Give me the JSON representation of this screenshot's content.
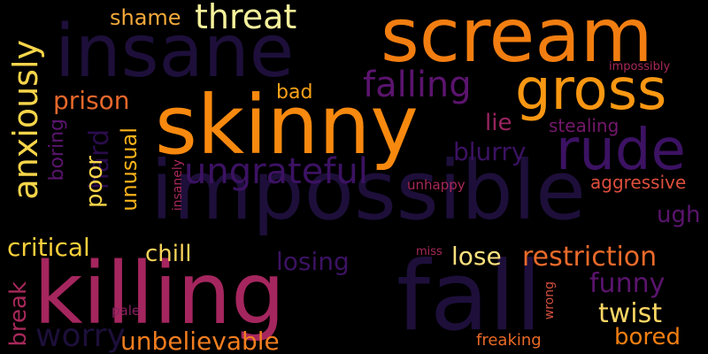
{
  "background": "#000000",
  "words": [
    {
      "text": "impossible",
      "color": "#1d0f3a",
      "orientation": "horizontal"
    },
    {
      "text": "fall",
      "color": "#1d0f3a",
      "orientation": "horizontal"
    },
    {
      "text": "insane",
      "color": "#1d0f3a",
      "orientation": "horizontal"
    },
    {
      "text": "worry",
      "color": "#1d0f3a",
      "orientation": "horizontal"
    },
    {
      "text": "scream",
      "color": "#f27e11",
      "orientation": "horizontal"
    },
    {
      "text": "skinny",
      "color": "#f8890f",
      "orientation": "horizontal"
    },
    {
      "text": "killing",
      "color": "#a5265e",
      "orientation": "horizontal"
    },
    {
      "text": "gross",
      "color": "#f99712",
      "orientation": "horizontal"
    },
    {
      "text": "rude",
      "color": "#3c1263",
      "orientation": "horizontal"
    },
    {
      "text": "threat",
      "color": "#f6f29c",
      "orientation": "horizontal"
    },
    {
      "text": "shame",
      "color": "#f4a93a",
      "orientation": "horizontal"
    },
    {
      "text": "falling",
      "color": "#5b146e",
      "orientation": "horizontal"
    },
    {
      "text": "anxiously",
      "color": "#f7d54a",
      "orientation": "vertical"
    },
    {
      "text": "prison",
      "color": "#e9682b",
      "orientation": "horizontal"
    },
    {
      "text": "bad",
      "color": "#f9a21a",
      "orientation": "horizontal"
    },
    {
      "text": "ungrateful",
      "color": "#3c1263",
      "orientation": "horizontal"
    },
    {
      "text": "hard",
      "color": "#2a0c4c",
      "orientation": "vertical"
    },
    {
      "text": "poor",
      "color": "#f7d54a",
      "orientation": "vertical"
    },
    {
      "text": "boring",
      "color": "#5b146e",
      "orientation": "vertical"
    },
    {
      "text": "unusual",
      "color": "#f9b21a",
      "orientation": "vertical"
    },
    {
      "text": "lie",
      "color": "#9a2460",
      "orientation": "horizontal"
    },
    {
      "text": "stealing",
      "color": "#74186c",
      "orientation": "horizontal"
    },
    {
      "text": "impossibly",
      "color": "#a8285a",
      "orientation": "horizontal"
    },
    {
      "text": "blurry",
      "color": "#3c1263",
      "orientation": "horizontal"
    },
    {
      "text": "aggressive",
      "color": "#de4e3c",
      "orientation": "horizontal"
    },
    {
      "text": "unhappy",
      "color": "#a8285a",
      "orientation": "horizontal"
    },
    {
      "text": "insanely",
      "color": "#a8285a",
      "orientation": "vertical"
    },
    {
      "text": "ugh",
      "color": "#5b146e",
      "orientation": "horizontal"
    },
    {
      "text": "critical",
      "color": "#f9cf3b",
      "orientation": "horizontal"
    },
    {
      "text": "chill",
      "color": "#f9d35a",
      "orientation": "horizontal"
    },
    {
      "text": "losing",
      "color": "#3c1263",
      "orientation": "horizontal"
    },
    {
      "text": "miss",
      "color": "#a8285a",
      "orientation": "horizontal"
    },
    {
      "text": "lose",
      "color": "#fbe07c",
      "orientation": "horizontal"
    },
    {
      "text": "restriction",
      "color": "#ea6a2a",
      "orientation": "horizontal"
    },
    {
      "text": "break",
      "color": "#a8285a",
      "orientation": "vertical"
    },
    {
      "text": "funny",
      "color": "#5b146e",
      "orientation": "horizontal"
    },
    {
      "text": "wrong",
      "color": "#d5503e",
      "orientation": "vertical"
    },
    {
      "text": "pale",
      "color": "#8a2262",
      "orientation": "horizontal"
    },
    {
      "text": "twist",
      "color": "#fbd664",
      "orientation": "horizontal"
    },
    {
      "text": "unbelievable",
      "color": "#f17d1f",
      "orientation": "horizontal"
    },
    {
      "text": "bored",
      "color": "#f27e11",
      "orientation": "horizontal"
    },
    {
      "text": "freaking",
      "color": "#e96a26",
      "orientation": "horizontal"
    }
  ]
}
